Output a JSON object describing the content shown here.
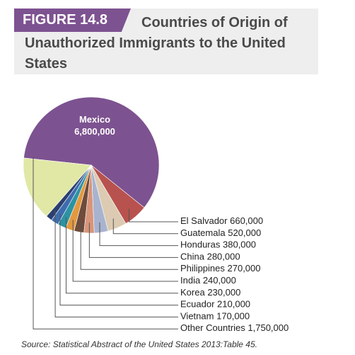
{
  "figure_label": "FIGURE 14.8",
  "source": "Source: Statistical Abstract of the United States 2013:Table 45.",
  "chart_data": {
    "type": "pie",
    "title": "Countries of Origin of Unauthorized Immigrants to the United States",
    "categories": [
      "Mexico",
      "El Salvador",
      "Guatemala",
      "Honduras",
      "China",
      "Philippines",
      "India",
      "Korea",
      "Ecuador",
      "Vietnam",
      "Other Countries"
    ],
    "values": [
      6800000,
      660000,
      520000,
      380000,
      280000,
      270000,
      240000,
      230000,
      210000,
      170000,
      1750000
    ],
    "value_labels": [
      "6,800,000",
      "660,000",
      "520,000",
      "380,000",
      "280,000",
      "270,000",
      "240,000",
      "230,000",
      "210,000",
      "170,000",
      "1,750,000"
    ],
    "colors": [
      "#7d5290",
      "#b8524e",
      "#dccbb2",
      "#a8b3cf",
      "#d8957a",
      "#6e4b3b",
      "#e3993f",
      "#2c93a3",
      "#3e6cae",
      "#2b3f70",
      "#e1e8a6"
    ]
  }
}
